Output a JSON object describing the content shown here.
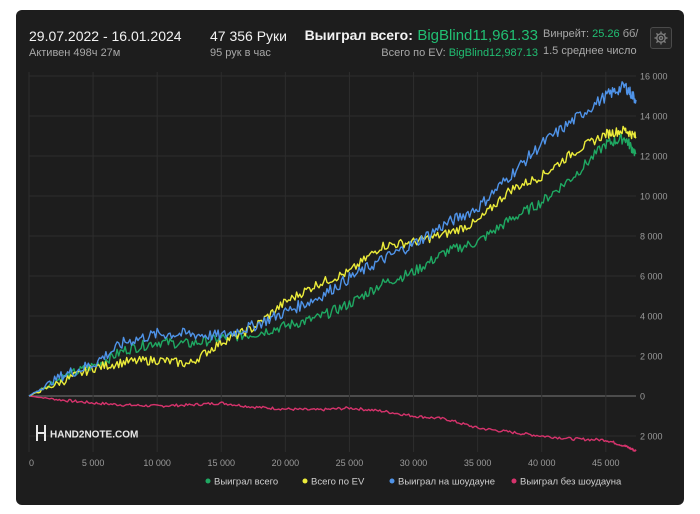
{
  "header": {
    "date_range": "29.07.2022 - 16.01.2024",
    "active_time": "Активен 498ч 27м",
    "hands_label": "47 356 Руки",
    "hands_per_hour": "95 рук в час",
    "won_total_label": "Выиграл всего:",
    "won_total_value": "BigBlind11,961.33",
    "ev_total_label": "Всего по EV:",
    "ev_total_value": "BigBlind12,987.13",
    "winrate_label": "Винрейт:",
    "winrate_value": "25.26",
    "winrate_unit": "бб/",
    "winrate_note": "1.5 среднее число"
  },
  "icons": {
    "settings": "gear-icon",
    "logo": "hand2note-logo-icon"
  },
  "logo": {
    "text": "HAND2NOTE.COM"
  },
  "colors": {
    "background": "#1d1d1d",
    "accent_green": "#21bf73",
    "won_total": "#1fa862",
    "ev_total": "#ecec3a",
    "showdown": "#4f93e8",
    "non_showdown": "#d6336c",
    "grid": "#2d2d2d",
    "zero_line": "#7a7a7a",
    "axis_text": "#9a9a9a"
  },
  "chart_data": {
    "type": "line",
    "x_ticks": [
      0,
      5000,
      10000,
      15000,
      20000,
      25000,
      30000,
      35000,
      40000,
      45000
    ],
    "x_tick_labels": [
      "0",
      "5 000",
      "10 000",
      "15 000",
      "20 000",
      "25 000",
      "30 000",
      "35 000",
      "40 000",
      "45 000"
    ],
    "xlim": [
      0,
      47356
    ],
    "y_ticks": [
      -2000,
      0,
      2000,
      4000,
      6000,
      8000,
      10000,
      12000,
      14000,
      16000
    ],
    "y_tick_labels": [
      "2 000",
      "0",
      "2 000",
      "4 000",
      "6 000",
      "8 000",
      "10 000",
      "12 000",
      "14 000",
      "16 000"
    ],
    "ylim": [
      -2800,
      16200
    ],
    "grid": true,
    "legend_position": "bottom",
    "series": [
      {
        "name": "Выиграл всего",
        "x": [
          0,
          2500,
          5000,
          7500,
          10000,
          12500,
          15000,
          17500,
          20000,
          22500,
          25000,
          27500,
          30000,
          32500,
          35000,
          37500,
          40000,
          42500,
          45000,
          46500,
          47356
        ],
        "y": [
          0,
          900,
          1500,
          2300,
          2700,
          2600,
          2900,
          3100,
          3500,
          3900,
          4600,
          5600,
          6200,
          7200,
          7700,
          8800,
          9700,
          11000,
          12600,
          12900,
          12100
        ]
      },
      {
        "name": "Всего по EV",
        "x": [
          0,
          2500,
          5000,
          7500,
          10000,
          12500,
          15000,
          17500,
          20000,
          22500,
          25000,
          27500,
          30000,
          32500,
          35000,
          37500,
          40000,
          42500,
          45000,
          46500,
          47356
        ],
        "y": [
          0,
          700,
          1400,
          1700,
          1800,
          1600,
          2700,
          3400,
          4700,
          5600,
          6200,
          7500,
          7700,
          8100,
          8700,
          10300,
          11000,
          12200,
          13100,
          13300,
          12950
        ]
      },
      {
        "name": "Выиграл на шоудауне",
        "x": [
          0,
          2500,
          5000,
          7500,
          10000,
          12500,
          15000,
          17500,
          20000,
          22500,
          25000,
          27500,
          30000,
          32500,
          35000,
          37500,
          40000,
          42500,
          45000,
          46500,
          47356
        ],
        "y": [
          0,
          1000,
          1600,
          2700,
          3100,
          3100,
          3000,
          3500,
          4200,
          4900,
          5900,
          6800,
          7600,
          8600,
          9400,
          11000,
          12600,
          13800,
          15000,
          15500,
          14800
        ]
      },
      {
        "name": "Выиграл без шоудауна",
        "x": [
          0,
          2500,
          5000,
          7500,
          10000,
          12500,
          15000,
          17500,
          20000,
          22500,
          25000,
          27500,
          30000,
          32500,
          35000,
          37500,
          40000,
          42500,
          45000,
          46500,
          47356
        ],
        "y": [
          0,
          -200,
          -350,
          -450,
          -500,
          -450,
          -350,
          -550,
          -650,
          -700,
          -600,
          -750,
          -1000,
          -1150,
          -1600,
          -1800,
          -2000,
          -2150,
          -2200,
          -2500,
          -2750
        ]
      }
    ]
  }
}
